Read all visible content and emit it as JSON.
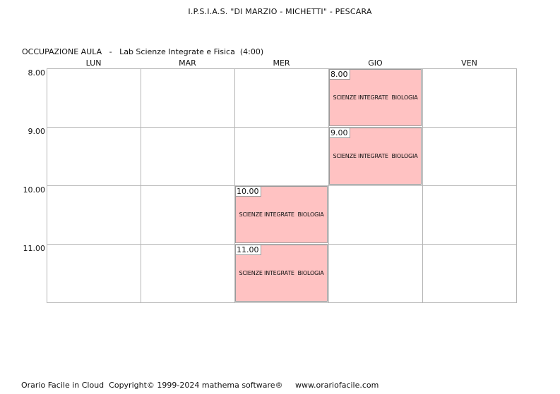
{
  "header": {
    "school": "I.P.S.I.A.S. \"DI MARZIO - MICHETTI\" - PESCARA",
    "room_prefix": "OCCUPAZIONE AULA   -   ",
    "room_name": "Lab Scienze Integrate e Fisica  (4:00)"
  },
  "days": [
    "LUN",
    "MAR",
    "MER",
    "GIO",
    "VEN"
  ],
  "hours": [
    "8.00",
    "9.00",
    "10.00",
    "11.00"
  ],
  "lessons": [
    {
      "day": "GIO",
      "time": "8.00",
      "subject": "SCIENZE INTEGRATE  BIOLOGIA"
    },
    {
      "day": "GIO",
      "time": "9.00",
      "subject": "SCIENZE INTEGRATE  BIOLOGIA"
    },
    {
      "day": "MER",
      "time": "10.00",
      "subject": "SCIENZE INTEGRATE  BIOLOGIA"
    },
    {
      "day": "MER",
      "time": "11.00",
      "subject": "SCIENZE INTEGRATE  BIOLOGIA"
    }
  ],
  "colors": {
    "lesson_fill": "#ffc2c2",
    "grid_line": "#b5b5b5"
  },
  "footer": {
    "product": "Orario Facile in Cloud",
    "copyright": "Copyright© 1999-2024 mathema software®",
    "website": "www.orariofacile.com"
  }
}
